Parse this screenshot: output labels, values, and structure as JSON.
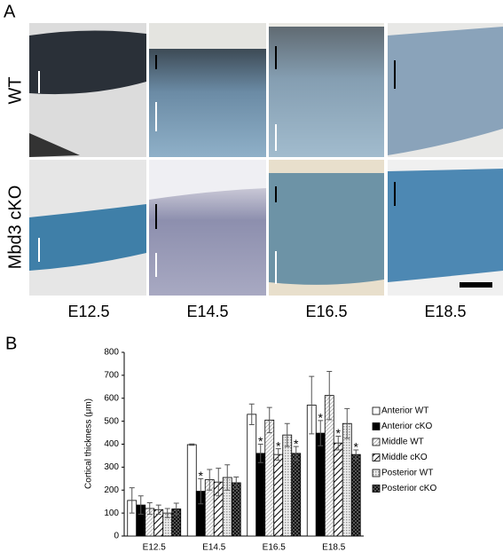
{
  "panel_a": {
    "label": "A",
    "rows": [
      "WT",
      "Mbd3 cKO"
    ],
    "columns": [
      "E12.5",
      "E14.5",
      "E16.5",
      "E18.5"
    ]
  },
  "chart_data": {
    "type": "bar",
    "label": "B",
    "y_label": "Cortical thickness (μm)",
    "categories": [
      "E12.5",
      "E14.5",
      "E16.5",
      "E18.5"
    ],
    "ylim": [
      0,
      800
    ],
    "yticks": [
      0,
      100,
      200,
      300,
      400,
      500,
      600,
      700,
      800
    ],
    "legend": "right",
    "series": [
      {
        "name": "Anterior WT",
        "color": "#ffffff",
        "pattern": "solid",
        "values": [
          155,
          398,
          530,
          570
        ],
        "errors": [
          55,
          3,
          45,
          125
        ],
        "marker_labels": [
          null,
          null,
          null,
          null
        ]
      },
      {
        "name": "Anterior cKO",
        "color": "#000000",
        "pattern": "solid",
        "values": [
          135,
          195,
          360,
          448
        ],
        "errors": [
          40,
          55,
          40,
          55
        ],
        "marker_labels": [
          null,
          "*",
          "*",
          "*"
        ]
      },
      {
        "name": "Middle WT",
        "color": "#9a9a9a",
        "pattern": "fine-diagonal",
        "values": [
          120,
          245,
          505,
          612
        ],
        "errors": [
          25,
          45,
          55,
          105
        ],
        "marker_labels": [
          null,
          null,
          null,
          null
        ]
      },
      {
        "name": "Middle cKO",
        "color": "#000000",
        "pattern": "wide-diagonal",
        "values": [
          115,
          235,
          355,
          405
        ],
        "errors": [
          20,
          60,
          25,
          30
        ],
        "marker_labels": [
          null,
          null,
          "*",
          "*"
        ]
      },
      {
        "name": "Posterior WT",
        "color": "#b0b0b0",
        "pattern": "dots",
        "values": [
          100,
          255,
          440,
          490
        ],
        "errors": [
          20,
          55,
          50,
          65
        ],
        "marker_labels": [
          null,
          null,
          null,
          null
        ]
      },
      {
        "name": "Posterior cKO",
        "color": "#303030",
        "pattern": "checker",
        "values": [
          118,
          232,
          360,
          355
        ],
        "errors": [
          25,
          25,
          30,
          20
        ],
        "marker_labels": [
          null,
          null,
          "*",
          "*"
        ]
      }
    ]
  }
}
